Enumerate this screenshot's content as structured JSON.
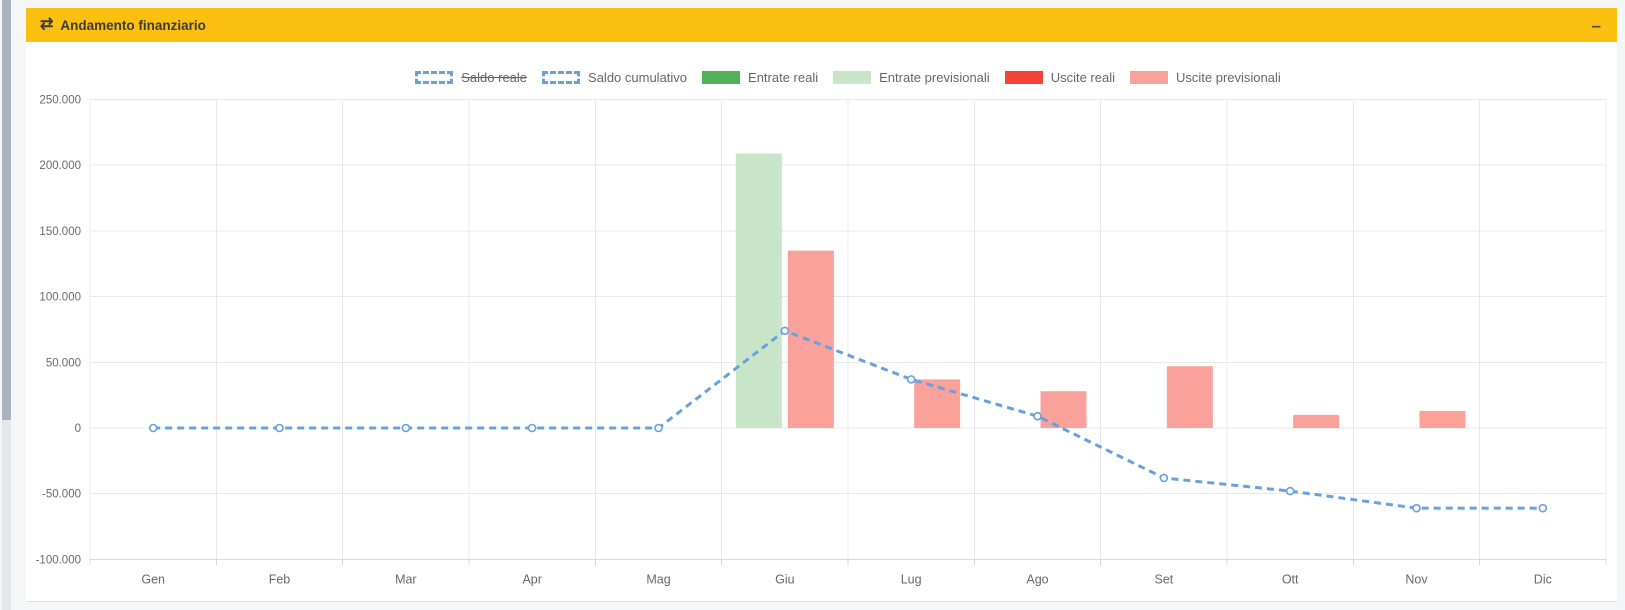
{
  "page": {
    "background": "#f5f6f8"
  },
  "scrollbar": {
    "side": "left"
  },
  "header": {
    "title": "Andamento finanziario",
    "icon": "exchange-icon",
    "icon_glyph": "⇄",
    "collapse_glyph": "–",
    "background": "#fcc011",
    "text_color": "#3b3b3b"
  },
  "chart_data": {
    "type": "mixed",
    "title": "Andamento finanziario",
    "categories": [
      "Gen",
      "Feb",
      "Mar",
      "Apr",
      "Mag",
      "Giu",
      "Lug",
      "Ago",
      "Set",
      "Ott",
      "Nov",
      "Dic"
    ],
    "y_axis": {
      "min": -100000,
      "max": 250000,
      "step": 50000,
      "tick_labels": [
        "250.000",
        "200.000",
        "150.000",
        "100.000",
        "50.000",
        "0",
        "-50.000",
        "-100.000"
      ],
      "number_format": "it-IT"
    },
    "grid": true,
    "legend_position": "top",
    "colors": {
      "line_blue": "#68a1dc",
      "grid": "#e8e8e8",
      "axis_line": "#d9d9d9",
      "tick_text": "#696969"
    },
    "series": [
      {
        "key": "saldo-reale",
        "name": "Saldo reale",
        "type": "line",
        "color": "#68a1dc",
        "dashed": true,
        "hidden": true,
        "values": null
      },
      {
        "key": "saldo-cumulativo",
        "name": "Saldo cumulativo",
        "type": "line",
        "color": "#68a1dc",
        "dashed": true,
        "hidden": false,
        "values": [
          0,
          0,
          0,
          0,
          0,
          74000,
          37000,
          9000,
          -38000,
          -48000,
          -61000,
          -61000
        ]
      },
      {
        "key": "entrate-reali",
        "name": "Entrate reali",
        "type": "bar",
        "color": "#50b254",
        "hidden": false,
        "values": [
          0,
          0,
          0,
          0,
          0,
          0,
          0,
          0,
          0,
          0,
          0,
          0
        ]
      },
      {
        "key": "entrate-previsionali",
        "name": "Entrate previsionali",
        "type": "bar",
        "color": "#c8e5c9",
        "hidden": false,
        "values": [
          0,
          0,
          0,
          0,
          0,
          209000,
          0,
          0,
          0,
          0,
          0,
          0
        ]
      },
      {
        "key": "uscite-reali",
        "name": "Uscite reali",
        "type": "bar",
        "color": "#f44336",
        "hidden": false,
        "values": [
          0,
          0,
          0,
          0,
          0,
          0,
          0,
          0,
          0,
          0,
          0,
          0
        ]
      },
      {
        "key": "uscite-previsionali",
        "name": "Uscite previsionali",
        "type": "bar",
        "color": "#f9a19a",
        "hidden": false,
        "values": [
          0,
          0,
          0,
          0,
          0,
          135000,
          37000,
          28000,
          47000,
          10000,
          13000,
          0
        ]
      }
    ]
  }
}
